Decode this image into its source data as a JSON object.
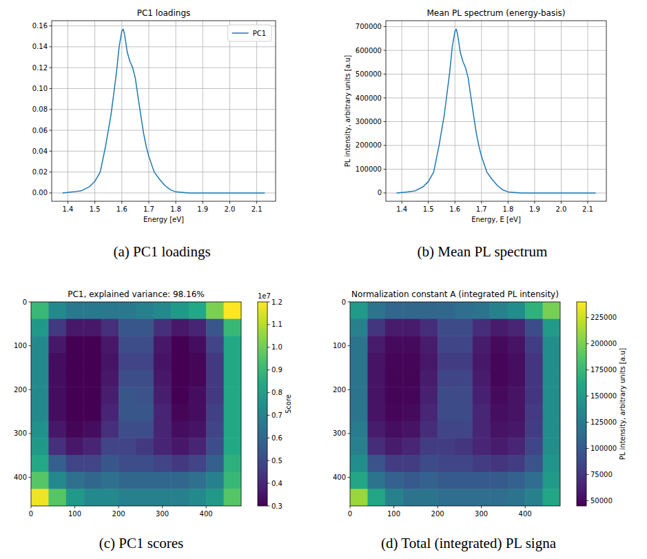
{
  "chart_data": [
    {
      "type": "line",
      "title": "PC1 loadings",
      "caption": "(a) PC1 loadings",
      "x_label": "Energy [eV]",
      "x": [
        1.38,
        1.42,
        1.45,
        1.48,
        1.5,
        1.52,
        1.54,
        1.56,
        1.58,
        1.59,
        1.6,
        1.605,
        1.61,
        1.62,
        1.63,
        1.64,
        1.65,
        1.66,
        1.67,
        1.68,
        1.69,
        1.7,
        1.72,
        1.74,
        1.76,
        1.78,
        1.8,
        1.85,
        1.9,
        2.0,
        2.13
      ],
      "series": [
        {
          "name": "PC1",
          "color": "#1f77b4",
          "values": [
            0.0,
            0.001,
            0.002,
            0.006,
            0.011,
            0.02,
            0.045,
            0.075,
            0.115,
            0.14,
            0.155,
            0.157,
            0.152,
            0.135,
            0.126,
            0.12,
            0.11,
            0.092,
            0.075,
            0.058,
            0.045,
            0.035,
            0.02,
            0.013,
            0.007,
            0.003,
            0.001,
            0.0,
            0.0,
            0.0,
            0.0
          ]
        }
      ],
      "xlim": [
        1.34,
        2.17
      ],
      "ylim": [
        -0.008,
        0.165
      ],
      "xticks": [
        1.4,
        1.5,
        1.6,
        1.7,
        1.8,
        1.9,
        {
          "value": 2,
          "label": "2.0"
        },
        2.1
      ],
      "yticks": [
        {
          "value": 0,
          "label": "0.00"
        },
        0.02,
        0.04,
        0.06,
        0.08,
        {
          "value": 0.1,
          "label": "0.10"
        },
        0.12,
        0.14,
        0.16
      ],
      "grid": true,
      "legend": "upper right"
    },
    {
      "type": "line",
      "title": "Mean PL spectrum (energy-basis)",
      "caption": "(b) Mean PL spectrum",
      "x_label": "Energy, E [eV]",
      "y_label": "PL intensity, arbitrary units [a.u]",
      "x": [
        1.38,
        1.42,
        1.45,
        1.48,
        1.5,
        1.52,
        1.54,
        1.56,
        1.58,
        1.59,
        1.6,
        1.605,
        1.61,
        1.62,
        1.63,
        1.64,
        1.65,
        1.66,
        1.67,
        1.68,
        1.69,
        1.7,
        1.72,
        1.74,
        1.76,
        1.78,
        1.8,
        1.85,
        1.9,
        2.0,
        2.13
      ],
      "values": [
        0,
        4400,
        8800,
        26000,
        48000,
        88000,
        198000,
        329000,
        505000,
        615000,
        680000,
        690000,
        667000,
        593000,
        553000,
        527000,
        483000,
        404000,
        329000,
        255000,
        198000,
        154000,
        88000,
        57000,
        31000,
        13000,
        4400,
        0,
        0,
        0,
        0
      ],
      "color": "#1f77b4",
      "xlim": [
        1.34,
        2.17
      ],
      "ylim": [
        -35000,
        725000
      ],
      "xticks": [
        1.4,
        1.5,
        1.6,
        1.7,
        1.8,
        1.9,
        {
          "value": 2,
          "label": "2.0"
        },
        2.1
      ],
      "yticks": [
        0,
        100000,
        200000,
        300000,
        400000,
        500000,
        600000,
        700000
      ],
      "grid": true
    },
    {
      "type": "heatmap",
      "title": "PC1, explained variance: 98.16%",
      "caption": "(c) PC1 scores",
      "xlim": [
        0,
        480
      ],
      "ylim": [
        465,
        0
      ],
      "xticks": [
        0,
        100,
        200,
        300,
        400
      ],
      "yticks": [
        0,
        100,
        200,
        300,
        400
      ],
      "cells": [
        [
          9000000,
          7200000,
          6600000,
          6600000,
          6600000,
          6600000,
          6900000,
          7200000,
          7800000,
          8400000,
          10200000,
          12000000
        ],
        [
          7800000,
          4500000,
          3600000,
          3600000,
          4200000,
          5400000,
          5400000,
          4200000,
          3600000,
          3900000,
          5400000,
          9000000
        ],
        [
          7200000,
          3600000,
          3000000,
          3000000,
          3600000,
          5100000,
          5100000,
          3600000,
          3000000,
          3300000,
          4800000,
          8400000
        ],
        [
          7200000,
          3300000,
          2880000,
          2880000,
          3480000,
          4800000,
          4800000,
          3480000,
          2880000,
          3120000,
          4500000,
          8400000
        ],
        [
          7200000,
          3300000,
          2820000,
          2820000,
          3600000,
          5100000,
          5100000,
          3600000,
          2880000,
          3120000,
          4500000,
          8400000
        ],
        [
          7200000,
          3300000,
          2820000,
          2880000,
          3720000,
          5400000,
          5280000,
          3720000,
          3000000,
          3300000,
          4500000,
          8400000
        ],
        [
          7200000,
          3300000,
          2880000,
          3000000,
          3900000,
          5400000,
          5400000,
          3900000,
          3120000,
          3300000,
          4680000,
          8400000
        ],
        [
          7500000,
          3600000,
          3120000,
          3300000,
          4200000,
          5100000,
          5100000,
          3900000,
          3300000,
          3480000,
          4800000,
          8400000
        ],
        [
          7800000,
          4200000,
          3600000,
          3900000,
          4800000,
          4800000,
          4500000,
          3900000,
          3600000,
          3900000,
          5100000,
          8400000
        ],
        [
          8400000,
          5700000,
          4800000,
          4800000,
          5400000,
          5100000,
          5100000,
          4800000,
          4500000,
          4800000,
          5700000,
          8700000
        ],
        [
          9600000,
          7200000,
          6300000,
          6000000,
          6300000,
          6000000,
          6000000,
          6000000,
          6000000,
          6300000,
          6900000,
          9000000
        ],
        [
          11800000,
          9600000,
          7800000,
          7200000,
          7200000,
          6900000,
          6900000,
          6900000,
          6900000,
          7200000,
          7800000,
          9600000
        ]
      ],
      "colorbar": {
        "label": "Score",
        "offset_label": "1e7",
        "range": [
          3000000,
          12000000
        ],
        "ticks": [
          {
            "value": 3000000,
            "label": "0.3"
          },
          {
            "value": 4000000,
            "label": "0.4"
          },
          {
            "value": 5000000,
            "label": "0.5"
          },
          {
            "value": 6000000,
            "label": "0.6"
          },
          {
            "value": 7000000,
            "label": "0.7"
          },
          {
            "value": 8000000,
            "label": "0.8"
          },
          {
            "value": 9000000,
            "label": "0.9"
          },
          {
            "value": 10000000,
            "label": "1.0"
          },
          {
            "value": 11000000,
            "label": "1.1"
          },
          {
            "value": 12000000,
            "label": "1.2"
          }
        ]
      }
    },
    {
      "type": "heatmap",
      "title": "Normalization constant A (integrated PL intensity)",
      "caption": "(d) Total (integrated) PL signa",
      "xlim": [
        0,
        480
      ],
      "ylim": [
        465,
        0
      ],
      "xticks": [
        0,
        100,
        200,
        300,
        400
      ],
      "yticks": [
        0,
        100,
        200,
        300,
        400
      ],
      "cells": [
        [
          150000,
          120000,
          110000,
          110000,
          110000,
          110000,
          115000,
          120000,
          130000,
          140000,
          170000,
          200000
        ],
        [
          130000,
          75000,
          60000,
          60000,
          70000,
          90000,
          90000,
          70000,
          60000,
          65000,
          90000,
          150000
        ],
        [
          120000,
          60000,
          50000,
          50000,
          60000,
          85000,
          85000,
          60000,
          50000,
          55000,
          80000,
          140000
        ],
        [
          120000,
          55000,
          48000,
          48000,
          58000,
          80000,
          80000,
          58000,
          48000,
          52000,
          75000,
          140000
        ],
        [
          120000,
          55000,
          47000,
          47000,
          60000,
          85000,
          85000,
          60000,
          48000,
          52000,
          75000,
          140000
        ],
        [
          120000,
          55000,
          47000,
          48000,
          62000,
          90000,
          88000,
          62000,
          50000,
          55000,
          75000,
          140000
        ],
        [
          120000,
          55000,
          48000,
          50000,
          65000,
          90000,
          90000,
          65000,
          52000,
          55000,
          78000,
          140000
        ],
        [
          125000,
          60000,
          52000,
          55000,
          70000,
          85000,
          85000,
          65000,
          55000,
          58000,
          80000,
          140000
        ],
        [
          130000,
          70000,
          60000,
          65000,
          80000,
          80000,
          75000,
          65000,
          60000,
          65000,
          85000,
          140000
        ],
        [
          140000,
          95000,
          80000,
          80000,
          90000,
          85000,
          85000,
          80000,
          75000,
          80000,
          95000,
          145000
        ],
        [
          160000,
          120000,
          105000,
          100000,
          105000,
          100000,
          100000,
          100000,
          100000,
          105000,
          115000,
          150000
        ],
        [
          210000,
          160000,
          130000,
          120000,
          120000,
          115000,
          115000,
          115000,
          115000,
          120000,
          130000,
          160000
        ]
      ],
      "colorbar": {
        "label": "PL intensity, arbitrary units [a.u]",
        "range": [
          45000,
          240000
        ],
        "ticks": [
          50000,
          75000,
          100000,
          125000,
          150000,
          175000,
          200000,
          225000
        ]
      }
    }
  ]
}
